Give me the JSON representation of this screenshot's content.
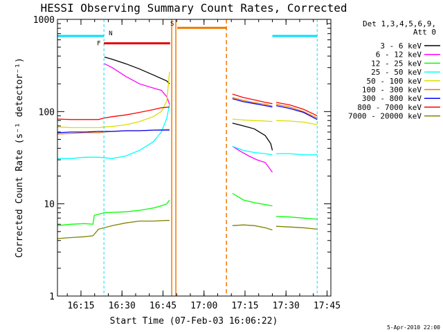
{
  "chart_data": {
    "type": "line",
    "title": "HESSI Observing Summary Count Rates, Corrected",
    "xlabel": "Start Time (07-Feb-03 16:06:22)",
    "ylabel": "Corrected Count Rate (s⁻¹ detector⁻¹)",
    "yscale": "log",
    "ylim": [
      1,
      1000
    ],
    "xlim_minutes": [
      0,
      100
    ],
    "xticks": [
      {
        "t": 8.6,
        "label": "16:15"
      },
      {
        "t": 23.6,
        "label": "16:30"
      },
      {
        "t": 38.6,
        "label": "16:45"
      },
      {
        "t": 53.6,
        "label": "17:00"
      },
      {
        "t": 68.6,
        "label": "17:15"
      },
      {
        "t": 83.6,
        "label": "17:30"
      },
      {
        "t": 98.6,
        "label": "17:45"
      }
    ],
    "yticks": [
      {
        "v": 1,
        "label": "1"
      },
      {
        "v": 10,
        "label": "10"
      },
      {
        "v": 100,
        "label": "100"
      },
      {
        "v": 1000,
        "label": "1000"
      }
    ],
    "legend_header": [
      "Det 1,3,4,5,6,9,",
      "Att 0"
    ],
    "timestamp": "5-Apr-2010 22:00",
    "flags": [
      {
        "label": "F",
        "color": "#e00000",
        "x1": 17,
        "x2": 41.2,
        "y": 550
      },
      {
        "label": "S",
        "color": "#f07800",
        "x1": 43.8,
        "x2": 61.8,
        "y": 810
      },
      {
        "label": "N",
        "color": "#00e0ff",
        "x1": 0,
        "x2": 17,
        "y": 660
      },
      {
        "label": "",
        "color": "#00e0ff",
        "x1": 78.6,
        "x2": 95,
        "y": 660
      }
    ],
    "night_lines": [
      {
        "t": 17,
        "color": "#00e0ff"
      },
      {
        "t": 95,
        "color": "#00e0ff"
      }
    ],
    "saa_lines": [
      {
        "t": 41.8,
        "color": "#f07800",
        "style": "solid"
      },
      {
        "t": 43.3,
        "color": "#f07800",
        "style": "solid"
      },
      {
        "t": 61.8,
        "color": "#f07800",
        "style": "dashed"
      }
    ],
    "series": [
      {
        "name": "3 - 6 keV",
        "color": "#000000",
        "segments": [
          [
            [
              17.2,
              390
            ],
            [
              20,
              370
            ],
            [
              25,
              330
            ],
            [
              30,
              290
            ],
            [
              35,
              250
            ],
            [
              40,
              215
            ],
            [
              41,
              200
            ]
          ],
          [
            [
              64,
              75
            ],
            [
              68,
              70
            ],
            [
              72,
              65
            ],
            [
              76,
              55
            ],
            [
              78,
              45
            ],
            [
              78.6,
              38
            ]
          ]
        ]
      },
      {
        "name": "6 - 12 keV",
        "color": "#ff00ff",
        "segments": [
          [
            [
              17.2,
              330
            ],
            [
              20,
              300
            ],
            [
              25,
              240
            ],
            [
              30,
              200
            ],
            [
              35,
              180
            ],
            [
              38,
              170
            ],
            [
              40,
              145
            ],
            [
              41,
              120
            ]
          ],
          [
            [
              64,
              42
            ],
            [
              67,
              37
            ],
            [
              70,
              33
            ],
            [
              73,
              30
            ],
            [
              76,
              28
            ],
            [
              78.6,
              22
            ]
          ]
        ]
      },
      {
        "name": "12 - 25 keV",
        "color": "#00ff00",
        "segments": [
          [
            [
              0,
              5.8
            ],
            [
              5,
              6
            ],
            [
              10,
              6.1
            ],
            [
              13,
              6
            ],
            [
              13.5,
              7.5
            ],
            [
              17,
              8
            ],
            [
              25,
              8.2
            ],
            [
              30,
              8.5
            ],
            [
              35,
              9
            ],
            [
              38,
              9.5
            ],
            [
              40,
              10
            ],
            [
              41,
              11
            ]
          ],
          [
            [
              64,
              13
            ],
            [
              68,
              11
            ],
            [
              72,
              10.3
            ],
            [
              76,
              9.8
            ],
            [
              78.6,
              9.5
            ]
          ],
          [
            [
              80,
              7.3
            ],
            [
              85,
              7.2
            ],
            [
              90,
              7
            ],
            [
              95,
              6.8
            ]
          ]
        ]
      },
      {
        "name": "25 - 50 keV",
        "color": "#00ffff",
        "segments": [
          [
            [
              0,
              31
            ],
            [
              5,
              31
            ],
            [
              10,
              32
            ],
            [
              15,
              32
            ],
            [
              20,
              31
            ],
            [
              25,
              33
            ],
            [
              30,
              38
            ],
            [
              35,
              47
            ],
            [
              38,
              60
            ],
            [
              40,
              85
            ],
            [
              41,
              120
            ]
          ],
          [
            [
              64,
              42
            ],
            [
              68,
              38
            ],
            [
              72,
              36
            ],
            [
              76,
              35
            ],
            [
              78.6,
              34
            ]
          ],
          [
            [
              80,
              35
            ],
            [
              85,
              35
            ],
            [
              90,
              34
            ],
            [
              95,
              34
            ]
          ]
        ]
      },
      {
        "name": "50 - 100 keV",
        "color": "#dddd00",
        "segments": [
          [
            [
              0,
              68
            ],
            [
              5,
              67
            ],
            [
              10,
              67
            ],
            [
              15,
              67
            ],
            [
              17,
              68
            ],
            [
              20,
              69
            ],
            [
              25,
              72
            ],
            [
              30,
              78
            ],
            [
              35,
              88
            ],
            [
              38,
              100
            ],
            [
              40,
              130
            ],
            [
              41,
              270
            ]
          ],
          [
            [
              64,
              83
            ],
            [
              68,
              81
            ],
            [
              72,
              80
            ],
            [
              76,
              79
            ],
            [
              78.6,
              78
            ]
          ],
          [
            [
              80,
              80
            ],
            [
              85,
              79
            ],
            [
              90,
              77
            ],
            [
              95,
              72
            ]
          ]
        ]
      },
      {
        "name": "100 - 300 keV",
        "color": "#f07800",
        "segments": [
          [
            [
              0,
              57
            ],
            [
              5,
              58
            ],
            [
              10,
              59
            ],
            [
              15,
              59
            ],
            [
              17,
              60
            ],
            [
              20,
              61
            ],
            [
              25,
              62
            ],
            [
              30,
              62
            ],
            [
              35,
              63
            ],
            [
              41,
              64
            ]
          ],
          [
            [
              64,
              142
            ],
            [
              68,
              132
            ],
            [
              72,
              125
            ],
            [
              76,
              120
            ],
            [
              78.6,
              115
            ]
          ],
          [
            [
              80,
              120
            ],
            [
              85,
              112
            ],
            [
              90,
              100
            ],
            [
              95,
              85
            ]
          ]
        ]
      },
      {
        "name": "300 - 800 keV",
        "color": "#0000ff",
        "segments": [
          [
            [
              0,
              59
            ],
            [
              5,
              60
            ],
            [
              10,
              60
            ],
            [
              15,
              61
            ],
            [
              20,
              61
            ],
            [
              25,
              62
            ],
            [
              30,
              62
            ],
            [
              35,
              63
            ],
            [
              41,
              63
            ]
          ],
          [
            [
              64,
              138
            ],
            [
              68,
              128
            ],
            [
              72,
              122
            ],
            [
              76,
              116
            ],
            [
              78.6,
              112
            ]
          ],
          [
            [
              80,
              116
            ],
            [
              85,
              108
            ],
            [
              90,
              98
            ],
            [
              95,
              82
            ]
          ]
        ]
      },
      {
        "name": "800 - 7000 keV",
        "color": "#ff0000",
        "segments": [
          [
            [
              0,
              83
            ],
            [
              5,
              82
            ],
            [
              10,
              82
            ],
            [
              15,
              82
            ],
            [
              17,
              85
            ],
            [
              20,
              88
            ],
            [
              25,
              92
            ],
            [
              30,
              98
            ],
            [
              35,
              105
            ],
            [
              38,
              110
            ],
            [
              41,
              112
            ]
          ],
          [
            [
              64,
              155
            ],
            [
              68,
              142
            ],
            [
              72,
              134
            ],
            [
              76,
              126
            ],
            [
              78.6,
              122
            ]
          ],
          [
            [
              80,
              126
            ],
            [
              85,
              118
            ],
            [
              90,
              106
            ],
            [
              95,
              90
            ]
          ]
        ]
      },
      {
        "name": "7000 - 20000 keV",
        "color": "#808000",
        "segments": [
          [
            [
              0,
              4.2
            ],
            [
              5,
              4.3
            ],
            [
              10,
              4.4
            ],
            [
              13,
              4.5
            ],
            [
              15,
              5.3
            ],
            [
              20,
              5.8
            ],
            [
              25,
              6.2
            ],
            [
              30,
              6.5
            ],
            [
              35,
              6.5
            ],
            [
              40,
              6.6
            ],
            [
              41,
              6.6
            ]
          ],
          [
            [
              64,
              5.8
            ],
            [
              68,
              5.9
            ],
            [
              72,
              5.8
            ],
            [
              76,
              5.5
            ],
            [
              78.6,
              5.2
            ]
          ],
          [
            [
              80,
              5.7
            ],
            [
              85,
              5.6
            ],
            [
              90,
              5.5
            ],
            [
              95,
              5.3
            ]
          ]
        ]
      }
    ]
  }
}
